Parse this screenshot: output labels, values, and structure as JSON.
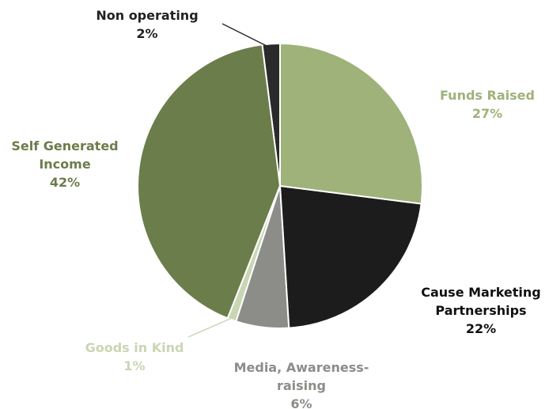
{
  "chart_data": {
    "type": "pie",
    "categories": [
      "Funds Raised",
      "Cause Marketing Partnerships",
      "Media, Awareness-raising",
      "Goods in Kind",
      "Self Generated Income",
      "Non operating"
    ],
    "values": [
      27,
      22,
      6,
      1,
      42,
      2
    ],
    "value_labels": [
      "27%",
      "22%",
      "6%",
      "1%",
      "42%",
      "2%"
    ],
    "colors": [
      "#9fb27a",
      "#1c1c1c",
      "#8c8c89",
      "#c9d6b2",
      "#6b7d4a",
      "#2a2a2a"
    ]
  }
}
